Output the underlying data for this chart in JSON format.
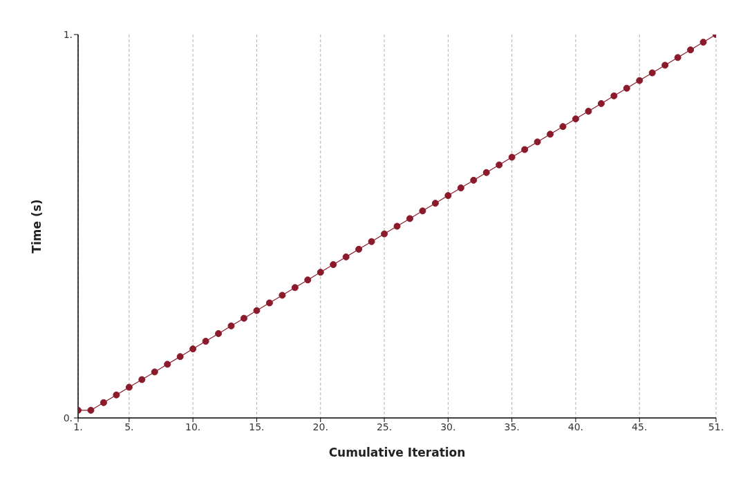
{
  "chart_data": {
    "type": "line",
    "xlabel": "Cumulative Iteration",
    "ylabel": "Time (s)",
    "x": [
      1,
      2,
      3,
      4,
      5,
      6,
      7,
      8,
      9,
      10,
      11,
      12,
      13,
      14,
      15,
      16,
      17,
      18,
      19,
      20,
      21,
      22,
      23,
      24,
      25,
      26,
      27,
      28,
      29,
      30,
      31,
      32,
      33,
      34,
      35,
      36,
      37,
      38,
      39,
      40,
      41,
      42,
      43,
      44,
      45,
      46,
      47,
      48,
      49,
      50,
      51
    ],
    "series": [
      {
        "color": "#8b1a2b",
        "values": [
          0.02,
          0.02,
          0.04,
          0.06,
          0.08,
          0.1,
          0.12,
          0.14,
          0.16,
          0.18,
          0.2,
          0.22,
          0.24,
          0.26,
          0.28,
          0.3,
          0.32,
          0.34,
          0.36,
          0.38,
          0.4,
          0.42,
          0.44,
          0.46,
          0.48,
          0.5,
          0.52,
          0.54,
          0.56,
          0.58,
          0.6,
          0.62,
          0.64,
          0.66,
          0.68,
          0.7,
          0.72,
          0.74,
          0.76,
          0.78,
          0.8,
          0.82,
          0.84,
          0.86,
          0.88,
          0.9,
          0.92,
          0.94,
          0.96,
          0.98,
          1
        ]
      }
    ],
    "xlim": [
      1,
      51
    ],
    "xticks": [
      {
        "value": 1,
        "label": "1."
      },
      {
        "value": 5,
        "label": "5."
      },
      {
        "value": 10,
        "label": "10."
      },
      {
        "value": 15,
        "label": "15."
      },
      {
        "value": 20,
        "label": "20."
      },
      {
        "value": 25,
        "label": "25."
      },
      {
        "value": 30,
        "label": "30."
      },
      {
        "value": 35,
        "label": "35."
      },
      {
        "value": 40,
        "label": "40."
      },
      {
        "value": 45,
        "label": "45."
      },
      {
        "value": 51,
        "label": "51."
      }
    ],
    "ylim": [
      0,
      1
    ],
    "yticks": [
      {
        "value": 0,
        "label": "0."
      },
      {
        "value": 1,
        "label": "1."
      }
    ],
    "grid": "x",
    "marker": "circle",
    "line_style": "solid"
  }
}
